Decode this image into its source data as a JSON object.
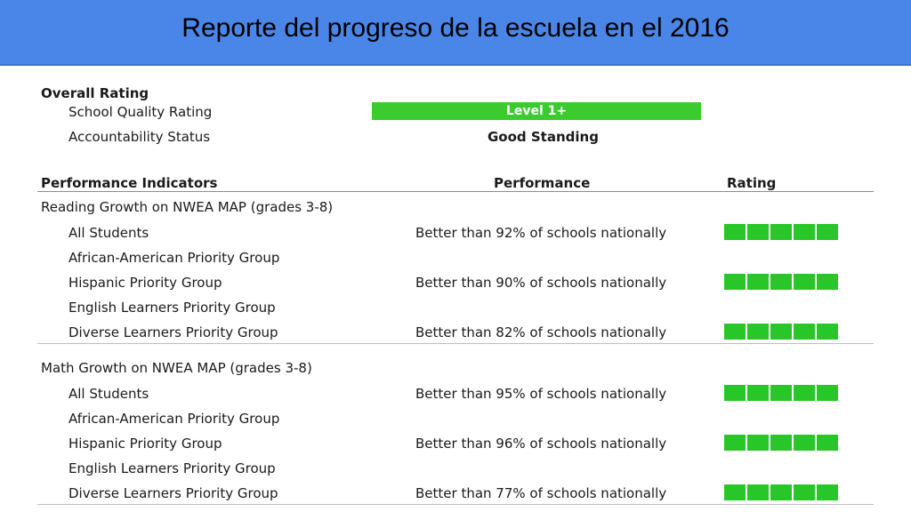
{
  "slide": {
    "title": "Reporte del progreso de la escuela en el 2016"
  },
  "overall": {
    "heading": "Overall Rating",
    "quality_label": "School Quality Rating",
    "quality_value": "Level 1+",
    "accountability_label": "Accountability Status",
    "accountability_value": "Good Standing"
  },
  "table": {
    "headers": {
      "indicators": "Performance Indicators",
      "performance": "Performance",
      "rating": "Rating"
    },
    "sections": [
      {
        "title": "Reading Growth on NWEA MAP (grades 3-8)",
        "rows": [
          {
            "label": "All Students",
            "performance": "Better than 92% of schools nationally",
            "rating": 5
          },
          {
            "label": "African-American Priority Group",
            "performance": "",
            "rating": 0
          },
          {
            "label": "Hispanic Priority Group",
            "performance": "Better than 90% of schools nationally",
            "rating": 5
          },
          {
            "label": "English Learners Priority Group",
            "performance": "",
            "rating": 0
          },
          {
            "label": "Diverse Learners Priority Group",
            "performance": "Better than 82% of schools nationally",
            "rating": 5
          }
        ]
      },
      {
        "title": "Math Growth on NWEA MAP (grades 3-8)",
        "rows": [
          {
            "label": "All Students",
            "performance": "Better than 95% of schools nationally",
            "rating": 5
          },
          {
            "label": "African-American Priority Group",
            "performance": "",
            "rating": 0
          },
          {
            "label": "Hispanic Priority Group",
            "performance": "Better than 96% of schools nationally",
            "rating": 5
          },
          {
            "label": "English Learners Priority Group",
            "performance": "",
            "rating": 0
          },
          {
            "label": "Diverse Learners Priority Group",
            "performance": "Better than 77% of schools nationally",
            "rating": 5
          }
        ]
      }
    ]
  },
  "colors": {
    "banner": "#4a86e8",
    "level_bar": "#3ccb2e",
    "rating_block": "#28c628"
  }
}
